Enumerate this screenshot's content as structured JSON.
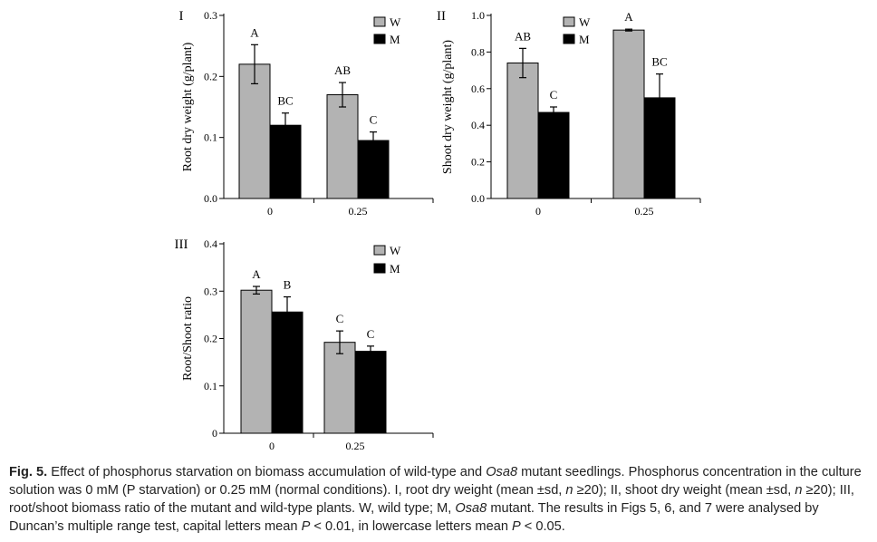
{
  "chart_data": [
    {
      "panel": "I",
      "type": "bar",
      "ylabel": "Root dry weight (g/plant)",
      "categories": [
        "0",
        "0.25"
      ],
      "ylim": [
        0,
        0.3
      ],
      "yticks": [
        "0.0",
        "0.1",
        "0.2",
        "0.3"
      ],
      "series": [
        {
          "name": "W",
          "color": "#b3b3b3",
          "values": [
            0.22,
            0.17
          ],
          "errors": [
            0.032,
            0.02
          ],
          "letters": [
            "A",
            "AB"
          ]
        },
        {
          "name": "M",
          "color": "#000000",
          "values": [
            0.12,
            0.095
          ],
          "errors": [
            0.02,
            0.014
          ],
          "letters": [
            "BC",
            "C"
          ]
        }
      ],
      "legend": "top-right"
    },
    {
      "panel": "II",
      "type": "bar",
      "ylabel": "Shoot dry weight (g/plant)",
      "categories": [
        "0",
        "0.25"
      ],
      "ylim": [
        0,
        1.0
      ],
      "yticks": [
        "0.0",
        "0.2",
        "0.4",
        "0.6",
        "0.8",
        "1.0"
      ],
      "series": [
        {
          "name": "W",
          "color": "#b3b3b3",
          "values": [
            0.74,
            0.92
          ],
          "errors": [
            0.08,
            0.005
          ],
          "letters": [
            "AB",
            "A"
          ]
        },
        {
          "name": "M",
          "color": "#000000",
          "values": [
            0.47,
            0.55
          ],
          "errors": [
            0.03,
            0.13
          ],
          "letters": [
            "C",
            "BC"
          ]
        }
      ],
      "legend": "top-right"
    },
    {
      "panel": "III",
      "type": "bar",
      "ylabel": "Root/Shoot ratio",
      "categories": [
        "0",
        "0.25"
      ],
      "ylim": [
        0,
        0.4
      ],
      "yticks": [
        "0",
        "0.1",
        "0.2",
        "0.3",
        "0.4"
      ],
      "series": [
        {
          "name": "W",
          "color": "#b3b3b3",
          "values": [
            0.302,
            0.192
          ],
          "errors": [
            0.008,
            0.024
          ],
          "letters": [
            "A",
            "C"
          ]
        },
        {
          "name": "M",
          "color": "#000000",
          "values": [
            0.256,
            0.173
          ],
          "errors": [
            0.032,
            0.011
          ],
          "letters": [
            "B",
            "C"
          ]
        }
      ],
      "legend": "top-right"
    }
  ],
  "caption": {
    "label": "Fig. 5.",
    "parts": [
      " Effect of phosphorus starvation on biomass accumulation of wild-type and ",
      "Osa8",
      " mutant seedlings. Phosphorus concentration in the culture solution was 0 mM (P starvation) or 0.25 mM (normal conditions). I, root dry weight (mean ±sd, ",
      "n",
      " ≥20); II, shoot dry weight (mean ±sd, ",
      "n",
      " ≥20); III, root/shoot biomass ratio of the mutant and wild-type plants. W, wild type; M, ",
      "Osa8",
      " mutant. The results in Figs 5, 6, and 7 were analysed by Duncan’s multiple range test, capital letters mean ",
      "P",
      " < 0.01, in lowercase letters mean ",
      "P",
      " < 0.05."
    ],
    "italic": [
      false,
      true,
      false,
      true,
      false,
      true,
      false,
      true,
      false,
      true,
      false,
      true,
      false
    ]
  }
}
